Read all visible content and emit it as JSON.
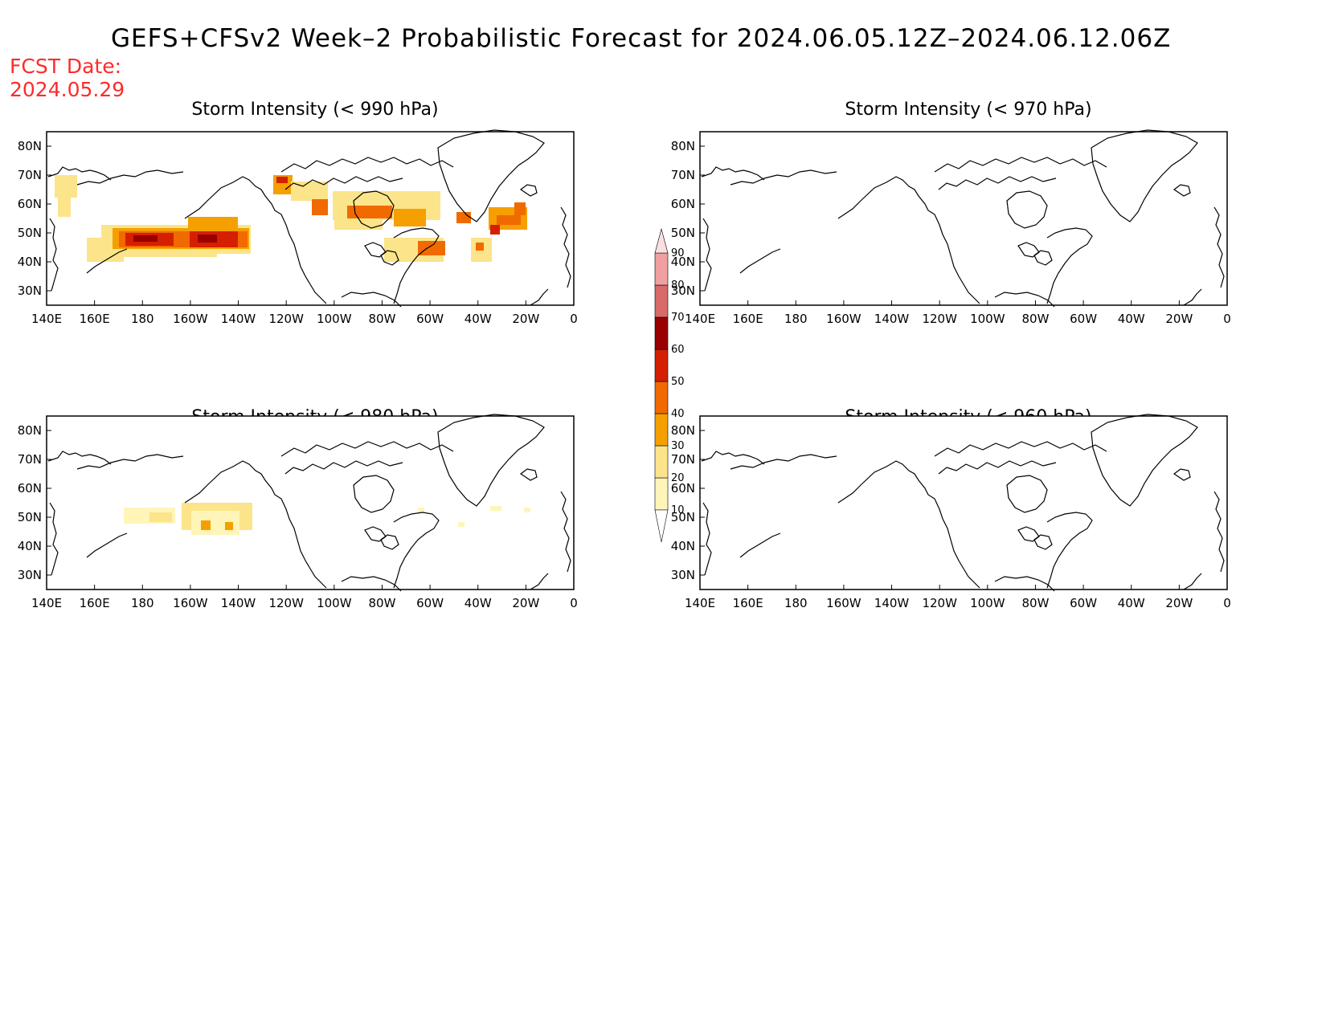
{
  "title": "GEFS+CFSv2 Week–2 Probabilistic Forecast for 2024.06.05.12Z–2024.06.12.06Z",
  "fcst_date_label": "FCST Date:",
  "fcst_date_value": "2024.05.29",
  "lat_ticks": [
    "80N",
    "70N",
    "60N",
    "50N",
    "40N",
    "30N"
  ],
  "lon_ticks": [
    "140E",
    "160E",
    "180",
    "160W",
    "140W",
    "120W",
    "100W",
    "80W",
    "60W",
    "40W",
    "20W",
    "0"
  ],
  "panels": [
    {
      "id": "p990",
      "title": "Storm Intensity (< 990 hPa)"
    },
    {
      "id": "p970",
      "title": "Storm Intensity (< 970 hPa)"
    },
    {
      "id": "p980",
      "title": "Storm Intensity (< 980 hPa)"
    },
    {
      "id": "p960",
      "title": "Storm Intensity (< 960 hPa)"
    }
  ],
  "colorbar": {
    "levels": [
      "10",
      "20",
      "30",
      "40",
      "50",
      "60",
      "70",
      "80",
      "90"
    ],
    "colors": [
      "#fff5b8",
      "#fbe48a",
      "#f5a000",
      "#f06a00",
      "#d42000",
      "#9a0000",
      "#d86a6a",
      "#f0a0a0",
      "#fbe0e0"
    ]
  }
}
